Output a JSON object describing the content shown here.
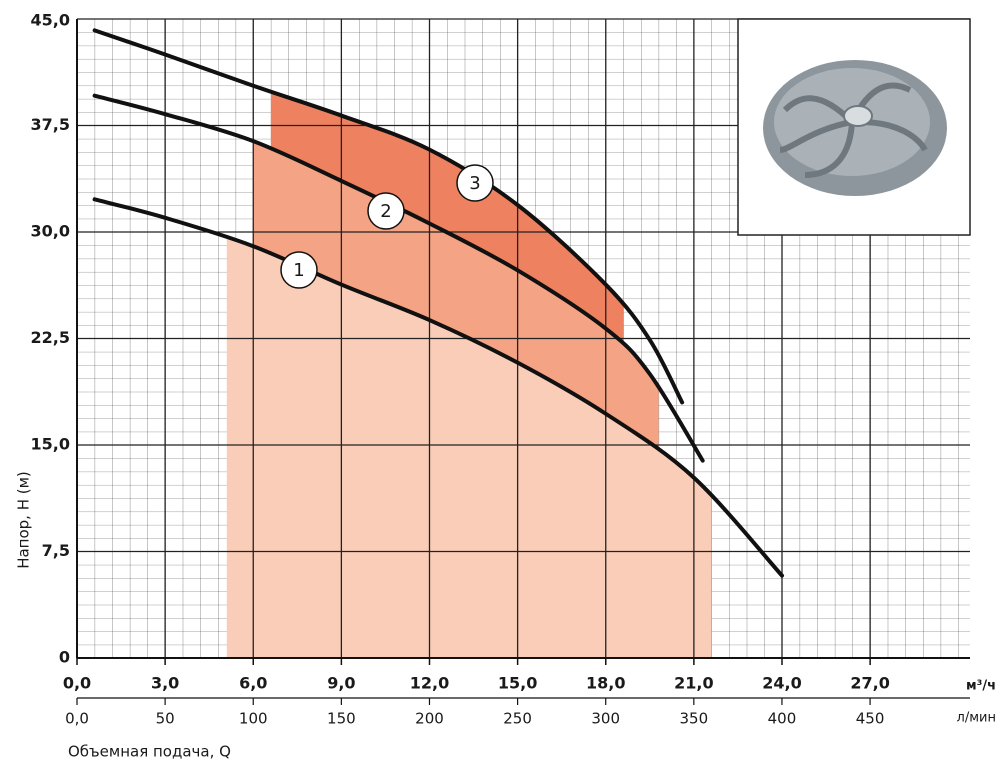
{
  "chart_data": {
    "type": "line",
    "ylabel": "Напор, H (м)",
    "xlabel": "Объемная подача, Q",
    "xunit": "м³/ч",
    "x2unit": "л/мин",
    "xlim": [
      0,
      30.4
    ],
    "ylim": [
      0,
      45
    ],
    "x2lim": [
      0,
      506.7
    ],
    "xticks": [
      {
        "value": 0,
        "label": "0,0"
      },
      {
        "value": 3,
        "label": "3,0"
      },
      {
        "value": 6,
        "label": "6,0"
      },
      {
        "value": 9,
        "label": "9,0"
      },
      {
        "value": 12,
        "label": "12,0"
      },
      {
        "value": 15,
        "label": "15,0"
      },
      {
        "value": 18,
        "label": "18,0"
      },
      {
        "value": 21,
        "label": "21,0"
      },
      {
        "value": 24,
        "label": "24,0"
      },
      {
        "value": 27,
        "label": "27,0"
      }
    ],
    "yticks": [
      0,
      {
        "value": 7.5,
        "label": "7,5"
      },
      {
        "value": 15,
        "label": "15,0"
      },
      {
        "value": 22.5,
        "label": "22,5"
      },
      {
        "value": 30,
        "label": "30,0"
      },
      {
        "value": 37.5,
        "label": "37,5"
      },
      {
        "value": 45,
        "label": "45,0"
      }
    ],
    "x2ticks": [
      {
        "value": 0,
        "label": "0,0"
      },
      50,
      100,
      150,
      200,
      250,
      300,
      350,
      400,
      450
    ],
    "grid": true,
    "series": [
      {
        "name": "1",
        "color": "#111111",
        "fill": "#f9cdb8",
        "range": [
          5.1,
          21.6
        ],
        "x": [
          0.6,
          3,
          6,
          9,
          12,
          15,
          18,
          21,
          24
        ],
        "values": [
          32.3,
          31.0,
          29.0,
          26.3,
          23.8,
          20.8,
          17.2,
          12.7,
          5.8
        ]
      },
      {
        "name": "2",
        "color": "#111111",
        "fill": "#f4a384",
        "range": [
          6.0,
          19.8
        ],
        "x": [
          0.6,
          3,
          6,
          9,
          12,
          15,
          18,
          19.5,
          21.3
        ],
        "values": [
          39.6,
          38.3,
          36.4,
          33.6,
          30.6,
          27.3,
          23.2,
          20.0,
          13.9
        ]
      },
      {
        "name": "3",
        "color": "#111111",
        "fill": "#ee8160",
        "range": [
          6.6,
          18.6
        ],
        "x": [
          0.6,
          3,
          6,
          9,
          12,
          15,
          18,
          19.5,
          20.6
        ],
        "values": [
          44.2,
          42.5,
          40.3,
          38.2,
          35.8,
          31.9,
          26.3,
          22.4,
          18.0
        ]
      }
    ]
  }
}
